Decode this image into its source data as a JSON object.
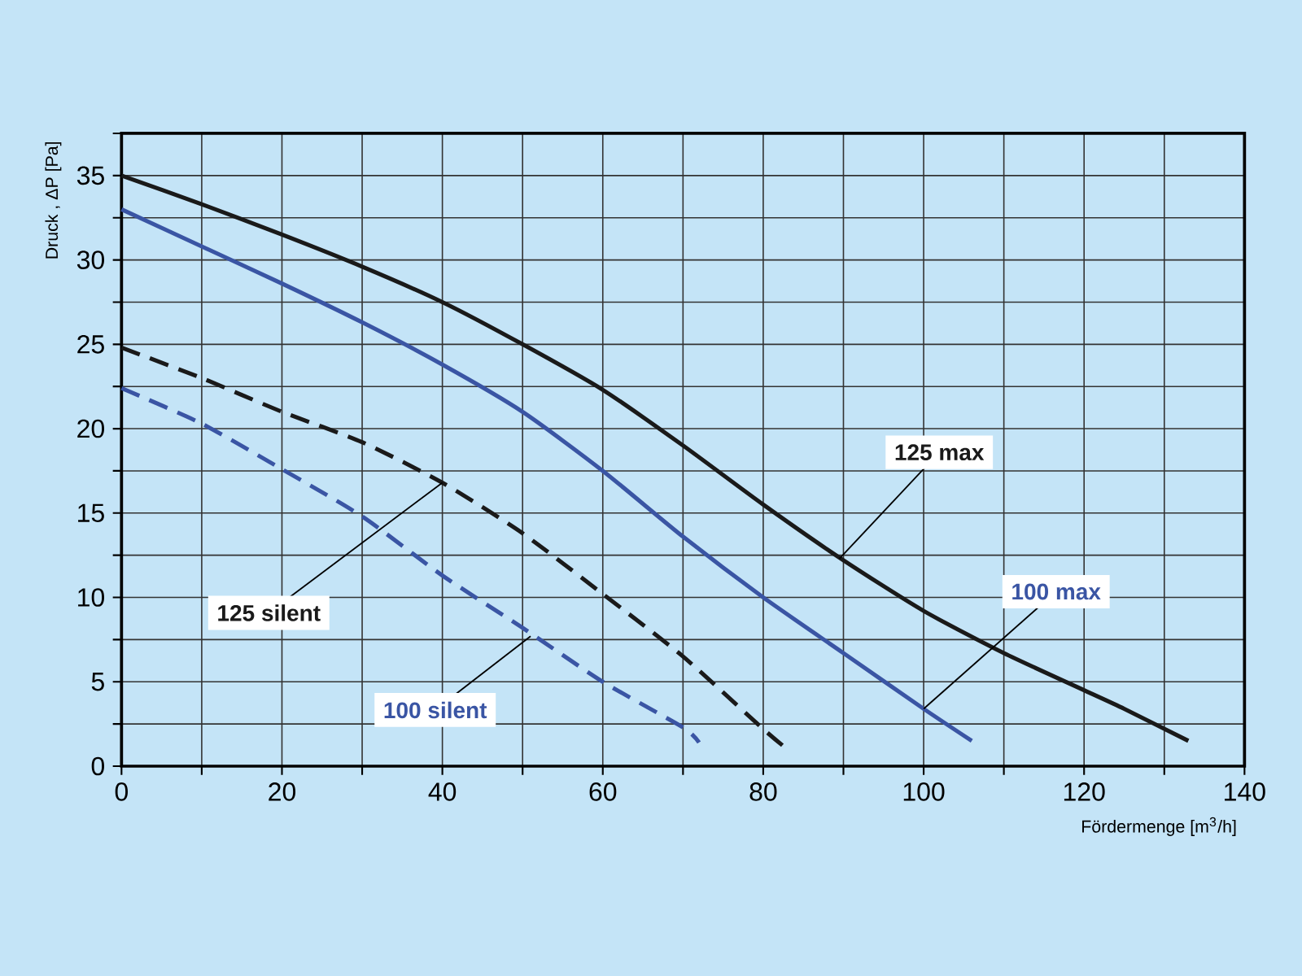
{
  "chart_data": {
    "type": "line",
    "xlabel": "Fördermenge [m$^{3}$/h]",
    "ylabel": "Druck , ΔP [Pa]",
    "xlim": [
      0,
      140
    ],
    "ylim": [
      0,
      37.5
    ],
    "xticks": [
      0,
      {
        "value": 10,
        "label": null
      },
      20,
      {
        "value": 30,
        "label": null
      },
      40,
      {
        "value": 50,
        "label": null
      },
      60,
      {
        "value": 70,
        "label": null
      },
      80,
      {
        "value": 90,
        "label": null
      },
      100,
      {
        "value": 110,
        "label": null
      },
      120,
      {
        "value": 130,
        "label": null
      },
      140
    ],
    "yticks": [
      0,
      {
        "value": 2.5,
        "label": null
      },
      5,
      {
        "value": 7.5,
        "label": null
      },
      10,
      {
        "value": 12.5,
        "label": null
      },
      15,
      {
        "value": 17.5,
        "label": null
      },
      20,
      {
        "value": 22.5,
        "label": null
      },
      25,
      {
        "value": 27.5,
        "label": null
      },
      30,
      {
        "value": 32.5,
        "label": null
      },
      35,
      {
        "value": 37.5,
        "label": null
      }
    ],
    "grid": true,
    "marker": "none",
    "series": [
      {
        "color": "#1a1a1a",
        "line_style": "solid",
        "x": [
          0,
          10,
          20,
          30,
          40,
          50,
          60,
          70,
          80,
          90,
          100,
          110,
          120,
          125,
          133
        ],
        "values": [
          35,
          33.3,
          31.5,
          29.6,
          27.5,
          25,
          22.3,
          19,
          15.5,
          12.2,
          9.2,
          6.7,
          4.5,
          3.4,
          1.5
        ]
      },
      {
        "color": "#3a55a4",
        "line_style": "solid",
        "x": [
          0,
          10,
          20,
          30,
          40,
          50,
          60,
          70,
          80,
          90,
          100,
          106
        ],
        "values": [
          33,
          30.8,
          28.6,
          26.3,
          23.8,
          21,
          17.5,
          13.6,
          10,
          6.7,
          3.4,
          1.5
        ]
      },
      {
        "color": "#1a1a1a",
        "line_style": "dashed",
        "x": [
          0,
          10,
          20,
          30,
          40,
          50,
          60,
          70,
          80,
          83
        ],
        "values": [
          24.8,
          23,
          21,
          19.2,
          16.8,
          13.8,
          10.2,
          6.5,
          2.2,
          1
        ]
      },
      {
        "color": "#3a55a4",
        "line_style": "dashed",
        "x": [
          0,
          10,
          20,
          30,
          40,
          50,
          60,
          70,
          72
        ],
        "values": [
          22.4,
          20.3,
          17.6,
          14.8,
          11.3,
          8.2,
          5,
          2.3,
          1.4
        ]
      }
    ],
    "annotations": [
      {
        "text": "125 max",
        "x": 89.5,
        "y": 12.3
      },
      {
        "text": "100 max",
        "x": 100,
        "y": 3.4
      },
      {
        "text": "125 silent",
        "x": 40,
        "y": 16.8
      },
      {
        "text": "100 silent",
        "x": 51,
        "y": 7.7
      }
    ]
  }
}
